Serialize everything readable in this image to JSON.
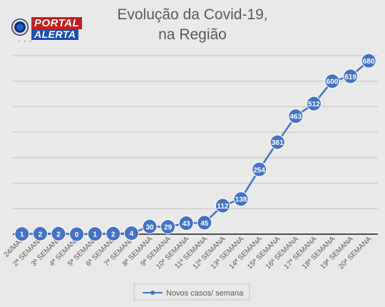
{
  "logo": {
    "word1": "PORTAL",
    "word2": "ALERTA",
    "tagline": "• • •"
  },
  "chart_data": {
    "type": "line",
    "title_line1": "Evolução da Covid-19,",
    "title_line2": "na Região",
    "categories": [
      "24/MAR",
      "2ª SEMANA",
      "3ª SEMANA",
      "4ª SEMANA",
      "5ª SEMANA",
      "6ª SEMANA",
      "7ª SEMANA",
      "8ª SEMANA",
      "9ª SEMANA",
      "10ª SEMANA",
      "11ª SEMANA",
      "12ª SEMANA",
      "13ª SEMANA",
      "14ª SEMANA",
      "15ª SEMANA",
      "16ª SEMANA",
      "17ª SEMANA",
      "18ª SEMANA",
      "19ª SEMANA",
      "20ª SEMANA"
    ],
    "series": [
      {
        "name": "Novos casos/ semana",
        "values": [
          1,
          2,
          2,
          0,
          1,
          2,
          4,
          30,
          29,
          43,
          45,
          112,
          138,
          254,
          361,
          463,
          512,
          600,
          619,
          680
        ]
      }
    ],
    "ylim": [
      0,
      700
    ],
    "grid": true,
    "legend_position": "bottom",
    "colors": {
      "line": "#4472c4",
      "marker": "#4472c4",
      "background": "#e9e9e9",
      "grid": "#c3c3c3",
      "text": "#595959"
    }
  }
}
